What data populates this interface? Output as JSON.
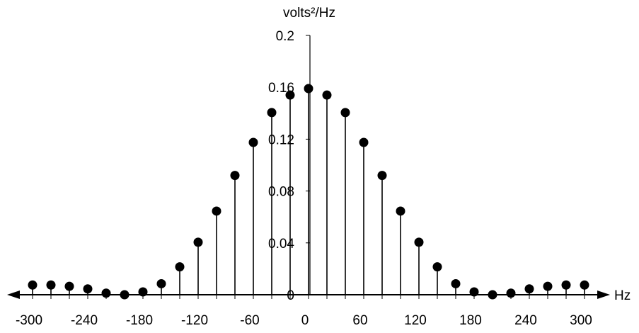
{
  "chart_data": {
    "type": "stem",
    "ylabel": "volts²/Hz",
    "xlabel": "Hz",
    "xlim": [
      -300,
      300
    ],
    "ylim": [
      0,
      0.2
    ],
    "x_ticks": [
      -300,
      -240,
      -180,
      -120,
      -60,
      0,
      60,
      120,
      180,
      240,
      300
    ],
    "y_ticks": [
      0,
      0.04,
      0.08,
      0.12,
      0.16,
      0.2
    ],
    "x_tick_labels": [
      "-300",
      "-240",
      "-180",
      "-120",
      "-60",
      "0",
      "60",
      "120",
      "180",
      "240",
      "300"
    ],
    "y_tick_labels": [
      "0",
      "0.04",
      "0.08",
      "0.12",
      "0.16",
      "0.2"
    ],
    "grid": false,
    "legend": "none",
    "x": [
      -300,
      -280,
      -260,
      -240,
      -220,
      -200,
      -180,
      -160,
      -140,
      -120,
      -100,
      -80,
      -60,
      -40,
      -20,
      0,
      20,
      40,
      60,
      80,
      100,
      120,
      140,
      160,
      180,
      200,
      220,
      240,
      260,
      280,
      300
    ],
    "values": [
      0.0075,
      0.0075,
      0.0065,
      0.0045,
      0.0012,
      0.0,
      0.0022,
      0.0085,
      0.0215,
      0.0405,
      0.0645,
      0.092,
      0.1175,
      0.1405,
      0.154,
      0.159,
      0.154,
      0.1405,
      0.1175,
      0.092,
      0.0645,
      0.0405,
      0.0215,
      0.0085,
      0.0022,
      0.0,
      0.0012,
      0.0045,
      0.0065,
      0.0075,
      0.0075
    ]
  }
}
